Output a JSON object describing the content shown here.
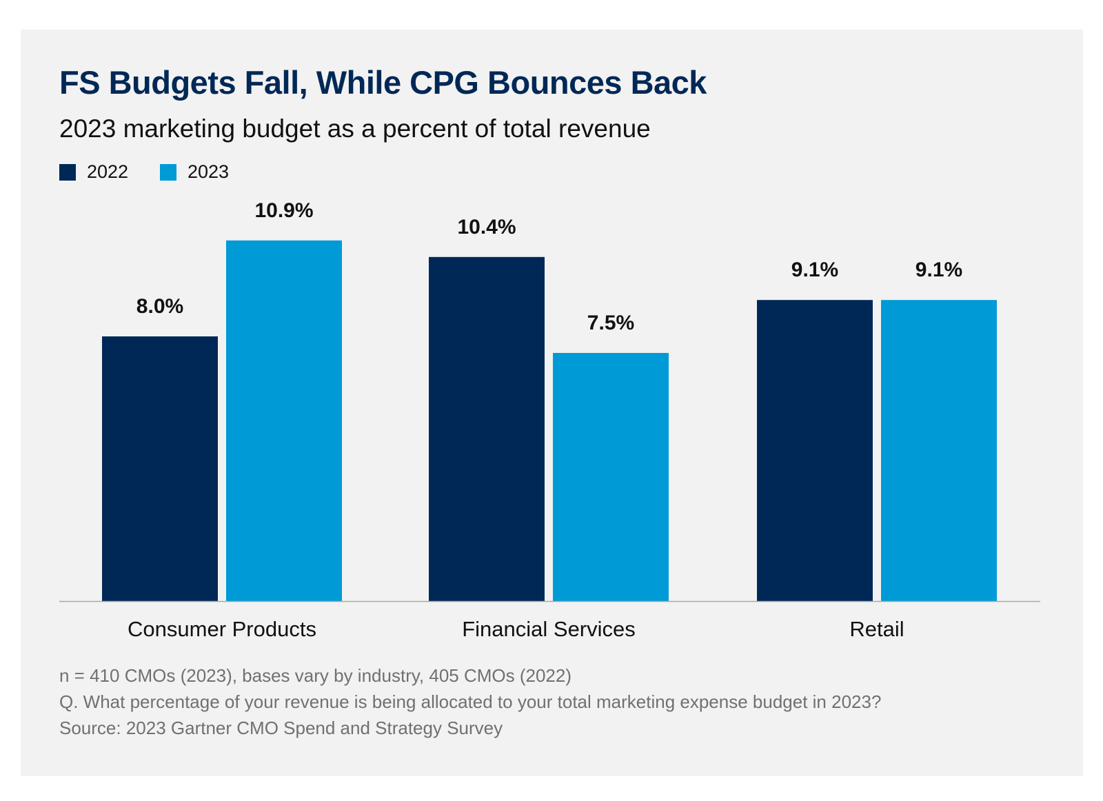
{
  "chart_data": {
    "type": "bar",
    "title": "FS Budgets Fall, While CPG Bounces Back",
    "subtitle": "2023 marketing budget as a percent of total revenue",
    "categories": [
      "Consumer Products",
      "Financial Services",
      "Retail"
    ],
    "series": [
      {
        "name": "2022",
        "color": "#002856",
        "values": [
          8.0,
          10.4,
          9.1
        ],
        "labels": [
          "8.0%",
          "10.4%",
          "9.1%"
        ]
      },
      {
        "name": "2023",
        "color": "#009ad6",
        "values": [
          10.9,
          7.5,
          9.1
        ],
        "labels": [
          "10.9%",
          "7.5%",
          "9.1%"
        ]
      }
    ],
    "ylim": [
      0,
      10.9
    ],
    "grid": false,
    "legend_placement": "top-left",
    "xlabel": "",
    "ylabel": ""
  },
  "footnotes": [
    "n = 410 CMOs (2023), bases vary by industry, 405 CMOs (2022)",
    "Q. What percentage of your revenue is being allocated to your total marketing expense budget in 2023?",
    "Source: 2023 Gartner CMO Spend and Strategy Survey"
  ]
}
